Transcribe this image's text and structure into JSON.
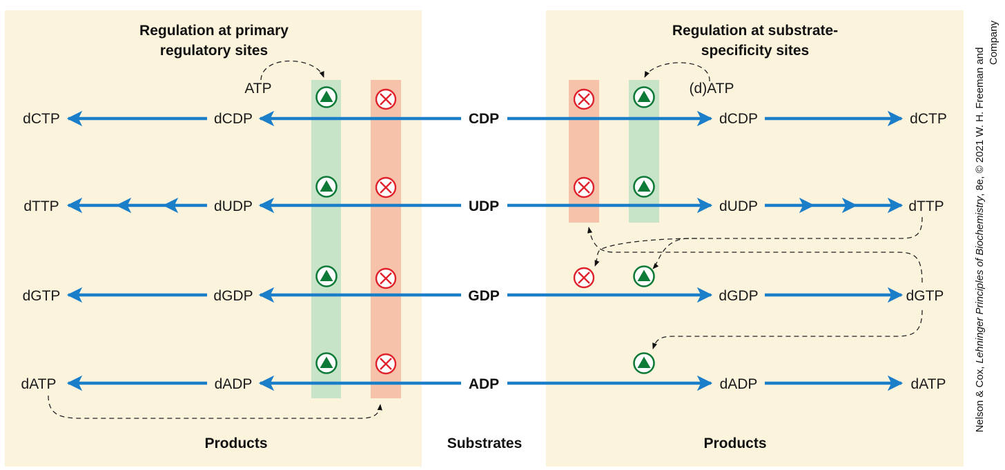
{
  "left_panel": {
    "title_line1": "Regulation at primary",
    "title_line2": "regulatory sites",
    "effector": "ATP",
    "footer": "Products"
  },
  "right_panel": {
    "title_line1": "Regulation at substrate-",
    "title_line2": "specificity sites",
    "effector": "(d)ATP",
    "footer": "Products"
  },
  "center_footer": "Substrates",
  "rows": [
    {
      "substrate": "CDP",
      "left_mid": "dCDP",
      "left_end": "dCTP",
      "right_mid": "dCDP",
      "right_end": "dCTP"
    },
    {
      "substrate": "UDP",
      "left_mid": "dUDP",
      "left_end": "dTTP",
      "right_mid": "dUDP",
      "right_end": "dTTP"
    },
    {
      "substrate": "GDP",
      "left_mid": "dGDP",
      "left_end": "dGTP",
      "right_mid": "dGDP",
      "right_end": "dGTP"
    },
    {
      "substrate": "ADP",
      "left_mid": "dADP",
      "left_end": "dATP",
      "right_mid": "dADP",
      "right_end": "dATP"
    }
  ],
  "credit_line1_prefix": "Nelson & Cox, ",
  "credit_line1_italic": "Lehninger Principles of Biochemistry",
  "credit_line1_suffix": ", 8e, © 2021 W. H. Freeman and",
  "credit_line2": "Company",
  "colors": {
    "panel_bg": "#fcf3dc",
    "arrow": "#1a7ec8",
    "activator_band": "#c7e3c8",
    "inhibitor_band": "#f6c3aa",
    "activator": "#0e7a38",
    "inhibitor": "#e0202a"
  },
  "icons": {
    "activator": "triangle-in-circle-icon",
    "inhibitor": "circled-x-icon"
  }
}
